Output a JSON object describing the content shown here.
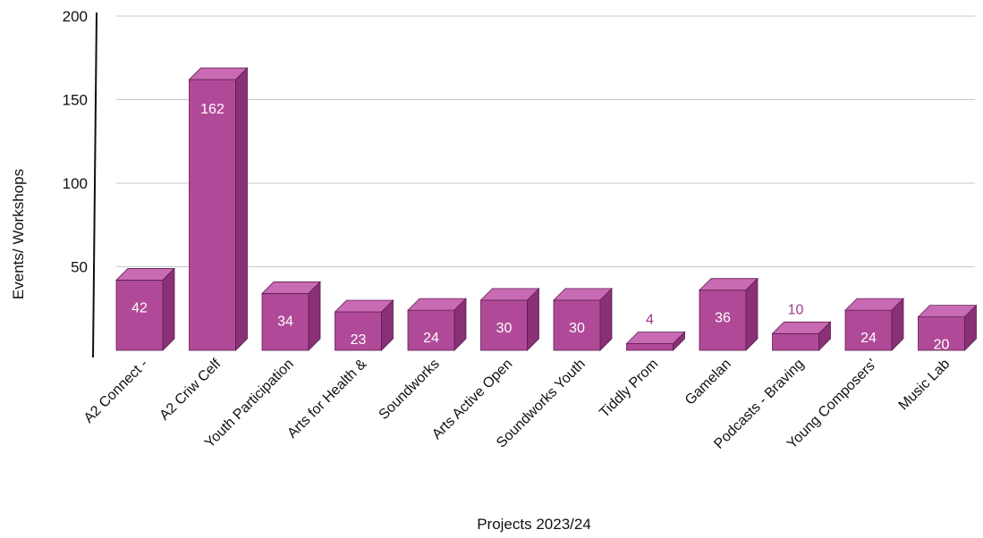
{
  "chart_data": {
    "type": "bar",
    "title": "",
    "xlabel": "Projects 2023/24",
    "ylabel": "Events/ Workshops",
    "ylim": [
      0,
      200
    ],
    "yticks": [
      50,
      100,
      150,
      200
    ],
    "grid": true,
    "bar_color": "#b04a98",
    "bar_top_color": "#c96ab4",
    "bar_side_color": "#8a3077",
    "label_color_inside": "#ffffff",
    "label_color_outside": "#9a3a88",
    "categories": [
      "A2 Connect -",
      "A2 Criw Celf",
      "Youth Participation",
      "Arts for Health &",
      "Soundworks",
      "Arts Active Open",
      "Soundworks Youth",
      "Tiddly Prom",
      "Gamelan",
      "Podcasts - Braving",
      "Young Composers'",
      "Music Lab"
    ],
    "values": [
      42,
      162,
      34,
      23,
      24,
      30,
      30,
      4,
      36,
      10,
      24,
      20
    ]
  }
}
